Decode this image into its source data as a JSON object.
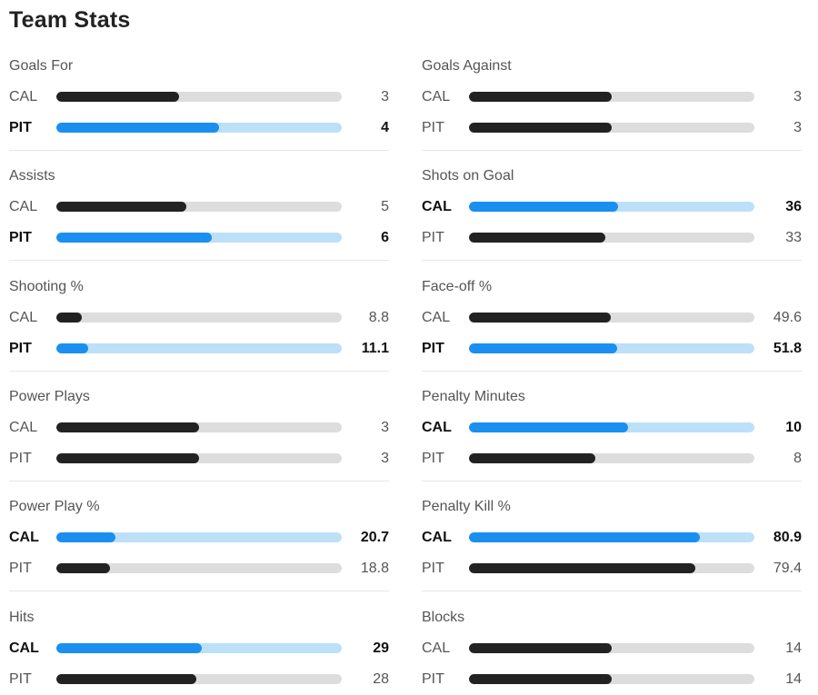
{
  "title": "Team Stats",
  "colors": {
    "leader_bar": "#1a8ff0",
    "leader_track": "#bde0f9",
    "other_bar": "#222222",
    "other_track": "#dddddd"
  },
  "stats": [
    {
      "label": "Goals For",
      "rows": [
        {
          "team": "CAL",
          "value": "3",
          "fraction": 0.43,
          "leader": false
        },
        {
          "team": "PIT",
          "value": "4",
          "fraction": 0.57,
          "leader": true
        }
      ]
    },
    {
      "label": "Goals Against",
      "rows": [
        {
          "team": "CAL",
          "value": "3",
          "fraction": 0.5,
          "leader": false
        },
        {
          "team": "PIT",
          "value": "3",
          "fraction": 0.5,
          "leader": false
        }
      ]
    },
    {
      "label": "Assists",
      "rows": [
        {
          "team": "CAL",
          "value": "5",
          "fraction": 0.455,
          "leader": false
        },
        {
          "team": "PIT",
          "value": "6",
          "fraction": 0.545,
          "leader": true
        }
      ]
    },
    {
      "label": "Shots on Goal",
      "rows": [
        {
          "team": "CAL",
          "value": "36",
          "fraction": 0.522,
          "leader": true
        },
        {
          "team": "PIT",
          "value": "33",
          "fraction": 0.478,
          "leader": false
        }
      ]
    },
    {
      "label": "Shooting %",
      "rows": [
        {
          "team": "CAL",
          "value": "8.8",
          "fraction": 0.088,
          "leader": false
        },
        {
          "team": "PIT",
          "value": "11.1",
          "fraction": 0.111,
          "leader": true
        }
      ]
    },
    {
      "label": "Face-off %",
      "rows": [
        {
          "team": "CAL",
          "value": "49.6",
          "fraction": 0.496,
          "leader": false
        },
        {
          "team": "PIT",
          "value": "51.8",
          "fraction": 0.518,
          "leader": true
        }
      ]
    },
    {
      "label": "Power Plays",
      "rows": [
        {
          "team": "CAL",
          "value": "3",
          "fraction": 0.5,
          "leader": false
        },
        {
          "team": "PIT",
          "value": "3",
          "fraction": 0.5,
          "leader": false
        }
      ]
    },
    {
      "label": "Penalty Minutes",
      "rows": [
        {
          "team": "CAL",
          "value": "10",
          "fraction": 0.556,
          "leader": true
        },
        {
          "team": "PIT",
          "value": "8",
          "fraction": 0.444,
          "leader": false
        }
      ]
    },
    {
      "label": "Power Play %",
      "rows": [
        {
          "team": "CAL",
          "value": "20.7",
          "fraction": 0.207,
          "leader": true
        },
        {
          "team": "PIT",
          "value": "18.8",
          "fraction": 0.188,
          "leader": false
        }
      ]
    },
    {
      "label": "Penalty Kill %",
      "rows": [
        {
          "team": "CAL",
          "value": "80.9",
          "fraction": 0.809,
          "leader": true
        },
        {
          "team": "PIT",
          "value": "79.4",
          "fraction": 0.794,
          "leader": false
        }
      ]
    },
    {
      "label": "Hits",
      "rows": [
        {
          "team": "CAL",
          "value": "29",
          "fraction": 0.509,
          "leader": true
        },
        {
          "team": "PIT",
          "value": "28",
          "fraction": 0.491,
          "leader": false
        }
      ]
    },
    {
      "label": "Blocks",
      "rows": [
        {
          "team": "CAL",
          "value": "14",
          "fraction": 0.5,
          "leader": false
        },
        {
          "team": "PIT",
          "value": "14",
          "fraction": 0.5,
          "leader": false
        }
      ]
    }
  ]
}
